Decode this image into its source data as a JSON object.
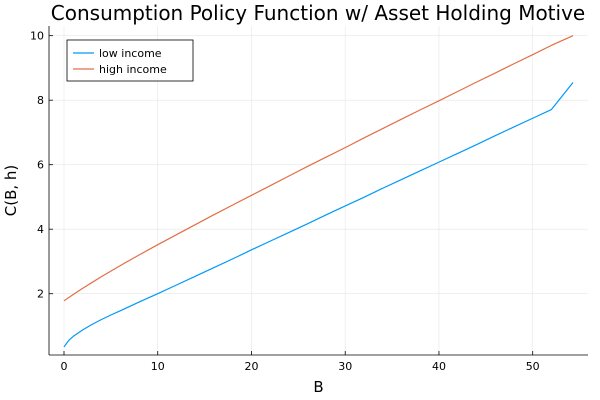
{
  "chart_data": {
    "type": "line",
    "title": "Consumption Policy Function w/ Asset Holding Motive",
    "xlabel": "B",
    "ylabel": "C(B, h)",
    "xlim": [
      -1.6,
      55.9
    ],
    "ylim": [
      0.1,
      10.3
    ],
    "xticks": [
      0,
      10,
      20,
      30,
      40,
      50
    ],
    "yticks": [
      2,
      4,
      6,
      8,
      10
    ],
    "grid": true,
    "legend_position": "top-left",
    "series": [
      {
        "name": "low income",
        "color": "#009af9",
        "x": [
          0,
          0.5,
          1,
          2,
          3,
          4,
          5,
          6,
          8,
          10,
          12,
          14,
          16,
          18,
          20,
          22,
          24,
          26,
          28,
          30,
          32,
          34,
          36,
          38,
          40,
          42,
          44,
          46,
          48,
          50,
          52,
          54.3
        ],
        "y": [
          0.35,
          0.55,
          0.68,
          0.88,
          1.05,
          1.2,
          1.34,
          1.47,
          1.74,
          2.0,
          2.27,
          2.54,
          2.81,
          3.08,
          3.36,
          3.63,
          3.9,
          4.17,
          4.45,
          4.72,
          4.99,
          5.27,
          5.54,
          5.81,
          6.08,
          6.35,
          6.62,
          6.9,
          7.17,
          7.44,
          7.71,
          8.55
        ]
      },
      {
        "name": "high income",
        "color": "#e26f46",
        "x": [
          0,
          1,
          2,
          3,
          4,
          5,
          6,
          8,
          10,
          12,
          14,
          16,
          18,
          20,
          22,
          24,
          26,
          28,
          30,
          32,
          34,
          36,
          38,
          40,
          42,
          44,
          46,
          48,
          50,
          52,
          54.3
        ],
        "y": [
          1.78,
          1.98,
          2.17,
          2.35,
          2.53,
          2.7,
          2.87,
          3.2,
          3.52,
          3.83,
          4.14,
          4.45,
          4.75,
          5.05,
          5.35,
          5.65,
          5.95,
          6.24,
          6.53,
          6.83,
          7.12,
          7.41,
          7.7,
          7.98,
          8.27,
          8.56,
          8.84,
          9.13,
          9.41,
          9.7,
          10.0
        ]
      }
    ]
  }
}
